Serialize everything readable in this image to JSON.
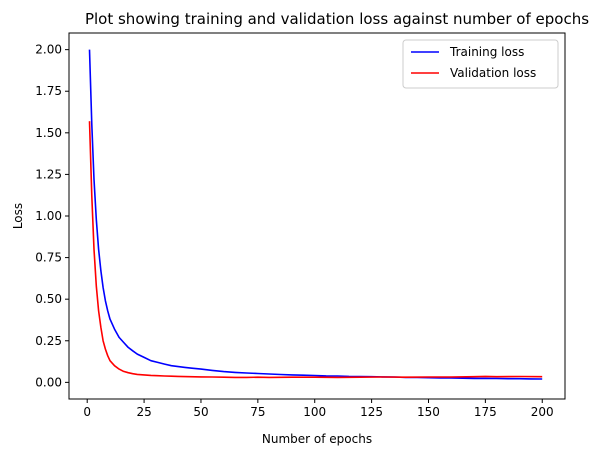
{
  "chart_data": {
    "type": "line",
    "title": "Plot showing training and validation loss against number of epochs",
    "xlabel": "Number of epochs",
    "ylabel": "Loss",
    "xlim": [
      -8,
      210
    ],
    "ylim": [
      -0.1,
      2.1
    ],
    "xticks": [
      0,
      25,
      50,
      75,
      100,
      125,
      150,
      175,
      200
    ],
    "yticks": [
      0.0,
      0.25,
      0.5,
      0.75,
      1.0,
      1.25,
      1.5,
      1.75,
      2.0
    ],
    "xtick_labels": [
      "0",
      "25",
      "50",
      "75",
      "100",
      "125",
      "150",
      "175",
      "200"
    ],
    "ytick_labels": [
      "0.00",
      "0.25",
      "0.50",
      "0.75",
      "1.00",
      "1.25",
      "1.50",
      "1.75",
      "2.00"
    ],
    "grid": false,
    "legend": "top-right",
    "series": [
      {
        "name": "Training loss",
        "color": "#0000ff",
        "x": [
          1,
          2,
          3,
          4,
          5,
          6,
          7,
          8,
          9,
          10,
          12,
          14,
          16,
          18,
          20,
          22,
          25,
          28,
          31,
          34,
          37,
          40,
          43,
          46,
          50,
          55,
          60,
          65,
          70,
          75,
          80,
          85,
          90,
          95,
          100,
          105,
          110,
          115,
          120,
          125,
          130,
          135,
          140,
          145,
          150,
          155,
          160,
          165,
          170,
          175,
          180,
          185,
          190,
          195,
          200
        ],
        "y": [
          2.0,
          1.55,
          1.22,
          0.98,
          0.8,
          0.67,
          0.57,
          0.49,
          0.43,
          0.38,
          0.32,
          0.27,
          0.24,
          0.21,
          0.19,
          0.17,
          0.15,
          0.13,
          0.12,
          0.11,
          0.1,
          0.095,
          0.09,
          0.085,
          0.08,
          0.072,
          0.065,
          0.06,
          0.056,
          0.053,
          0.05,
          0.047,
          0.045,
          0.043,
          0.041,
          0.039,
          0.038,
          0.036,
          0.035,
          0.034,
          0.033,
          0.032,
          0.03,
          0.029,
          0.028,
          0.027,
          0.026,
          0.025,
          0.024,
          0.024,
          0.023,
          0.022,
          0.022,
          0.021,
          0.02
        ]
      },
      {
        "name": "Validation loss",
        "color": "#ff0000",
        "x": [
          1,
          2,
          3,
          4,
          5,
          6,
          7,
          8,
          9,
          10,
          12,
          14,
          16,
          18,
          20,
          22,
          25,
          28,
          31,
          34,
          37,
          40,
          45,
          50,
          55,
          60,
          65,
          70,
          75,
          80,
          90,
          100,
          110,
          120,
          130,
          140,
          150,
          160,
          170,
          175,
          180,
          190,
          200
        ],
        "y": [
          1.57,
          1.12,
          0.8,
          0.58,
          0.43,
          0.33,
          0.25,
          0.2,
          0.16,
          0.13,
          0.1,
          0.08,
          0.066,
          0.058,
          0.052,
          0.048,
          0.045,
          0.042,
          0.04,
          0.038,
          0.037,
          0.036,
          0.034,
          0.033,
          0.032,
          0.031,
          0.03,
          0.03,
          0.031,
          0.03,
          0.031,
          0.031,
          0.03,
          0.031,
          0.032,
          0.031,
          0.032,
          0.032,
          0.034,
          0.036,
          0.034,
          0.035,
          0.034
        ]
      }
    ]
  }
}
